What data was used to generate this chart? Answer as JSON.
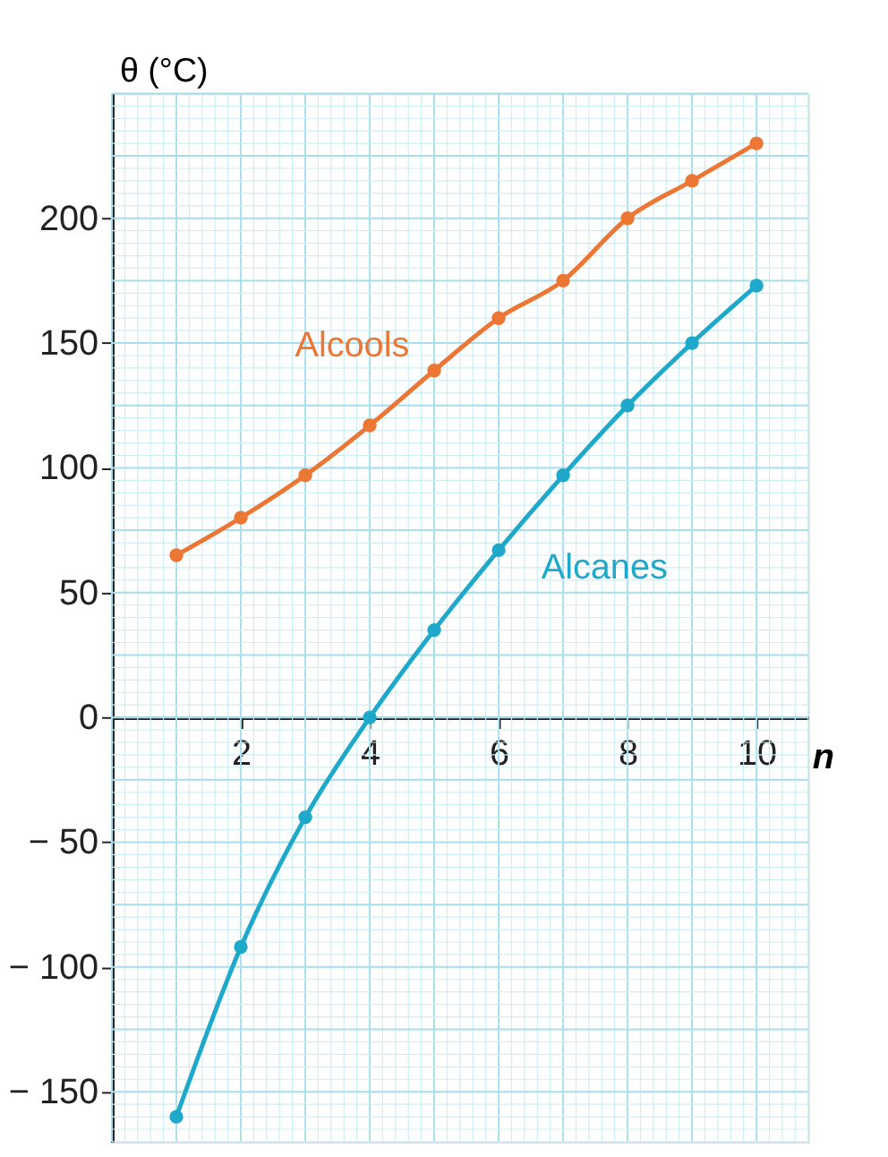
{
  "chart_data": {
    "type": "line",
    "xlabel": "n",
    "ylabel": "θ (°C)",
    "x": [
      1,
      2,
      3,
      4,
      5,
      6,
      7,
      8,
      9,
      10
    ],
    "series": [
      {
        "name": "Alcools",
        "color": "#ec7634",
        "values": [
          65,
          80,
          97,
          117,
          139,
          160,
          175,
          200,
          215,
          230
        ]
      },
      {
        "name": "Alcanes",
        "color": "#1ea8c9",
        "values": [
          -160,
          -92,
          -40,
          0,
          35,
          67,
          97,
          125,
          150,
          173
        ]
      }
    ],
    "xlim": [
      0,
      10.8
    ],
    "ylim": [
      -170,
      250
    ],
    "xticks": [
      2,
      4,
      6,
      8,
      10
    ],
    "yticks": [
      {
        "value": -150,
        "label": "− 150"
      },
      {
        "value": -100,
        "label": "− 100"
      },
      {
        "value": -50,
        "label": "− 50"
      },
      0,
      50,
      100,
      150,
      200
    ],
    "grid": true,
    "marker": "circle",
    "line_style": "solid"
  }
}
